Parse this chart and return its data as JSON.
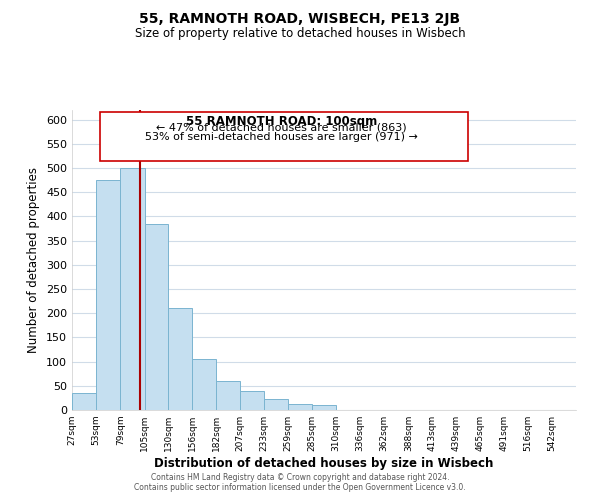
{
  "title": "55, RAMNOTH ROAD, WISBECH, PE13 2JB",
  "subtitle": "Size of property relative to detached houses in Wisbech",
  "xlabel": "Distribution of detached houses by size in Wisbech",
  "ylabel": "Number of detached properties",
  "bar_edges": [
    27,
    53,
    79,
    105,
    130,
    156,
    182,
    207,
    233,
    259,
    285,
    310,
    336,
    362,
    388,
    413,
    439,
    465,
    491,
    516,
    542
  ],
  "bar_heights": [
    35,
    475,
    500,
    385,
    210,
    105,
    60,
    40,
    22,
    13,
    11,
    1,
    0,
    0,
    0,
    0,
    0,
    0,
    0,
    1,
    0
  ],
  "bar_color": "#c5dff0",
  "bar_edgecolor": "#7ab4d0",
  "property_line_x": 100,
  "property_line_color": "#aa0000",
  "ylim": [
    0,
    620
  ],
  "xlim_min": 27,
  "xlim_max": 568,
  "annotation_title": "55 RAMNOTH ROAD: 100sqm",
  "annotation_line1": "← 47% of detached houses are smaller (863)",
  "annotation_line2": "53% of semi-detached houses are larger (971) →",
  "annotation_box_color": "#ffffff",
  "annotation_box_edgecolor": "#cc0000",
  "footer1": "Contains HM Land Registry data © Crown copyright and database right 2024.",
  "footer2": "Contains public sector information licensed under the Open Government Licence v3.0.",
  "tick_labels": [
    "27sqm",
    "53sqm",
    "79sqm",
    "105sqm",
    "130sqm",
    "156sqm",
    "182sqm",
    "207sqm",
    "233sqm",
    "259sqm",
    "285sqm",
    "310sqm",
    "336sqm",
    "362sqm",
    "388sqm",
    "413sqm",
    "439sqm",
    "465sqm",
    "491sqm",
    "516sqm",
    "542sqm"
  ],
  "tick_positions": [
    27,
    53,
    79,
    105,
    130,
    156,
    182,
    207,
    233,
    259,
    285,
    310,
    336,
    362,
    388,
    413,
    439,
    465,
    491,
    516,
    542
  ],
  "background_color": "#ffffff",
  "grid_color": "#d0dce8"
}
